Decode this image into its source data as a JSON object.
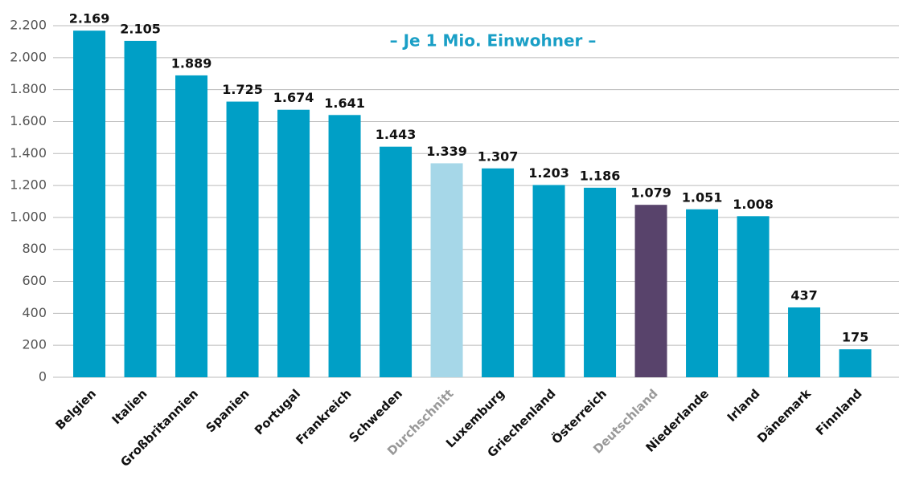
{
  "chart_data": {
    "type": "bar",
    "annotation": "– Je 1 Mio. Einwohner –",
    "categories": [
      "Belgien",
      "Italien",
      "Großbritannien",
      "Spanien",
      "Portugal",
      "Frankreich",
      "Schweden",
      "Durchschnitt",
      "Luxemburg",
      "Griechenland",
      "Österreich",
      "Deutschland",
      "Niederlande",
      "Irland",
      "Dänemark",
      "Finnland"
    ],
    "values": [
      2169,
      2105,
      1889,
      1725,
      1674,
      1641,
      1443,
      1339,
      1307,
      1203,
      1186,
      1079,
      1051,
      1008,
      437,
      175
    ],
    "value_labels": [
      "2.169",
      "2.105",
      "1.889",
      "1.725",
      "1.674",
      "1.641",
      "1.443",
      "1.339",
      "1.307",
      "1.203",
      "1.186",
      "1.079",
      "1.051",
      "1.008",
      "437",
      "175"
    ],
    "colors": [
      "#009fc6",
      "#009fc6",
      "#009fc6",
      "#009fc6",
      "#009fc6",
      "#009fc6",
      "#009fc6",
      "#a6d7e8",
      "#009fc6",
      "#009fc6",
      "#009fc6",
      "#58436b",
      "#009fc6",
      "#009fc6",
      "#009fc6",
      "#009fc6"
    ],
    "category_label_colors": [
      "#111",
      "#111",
      "#111",
      "#111",
      "#111",
      "#111",
      "#111",
      "#999",
      "#111",
      "#111",
      "#111",
      "#999",
      "#111",
      "#111",
      "#111",
      "#111"
    ],
    "ylim": [
      0,
      2200
    ],
    "yticks": [
      0,
      200,
      400,
      600,
      800,
      {
        "value": 1000,
        "label": "1.000"
      },
      {
        "value": 1200,
        "label": "1.200"
      },
      {
        "value": 1400,
        "label": "1.400"
      },
      {
        "value": 1600,
        "label": "1.600"
      },
      {
        "value": 1800,
        "label": "1.800"
      },
      {
        "value": 2000,
        "label": "2.000"
      },
      {
        "value": 2200,
        "label": "2.200"
      }
    ],
    "grid": true
  }
}
